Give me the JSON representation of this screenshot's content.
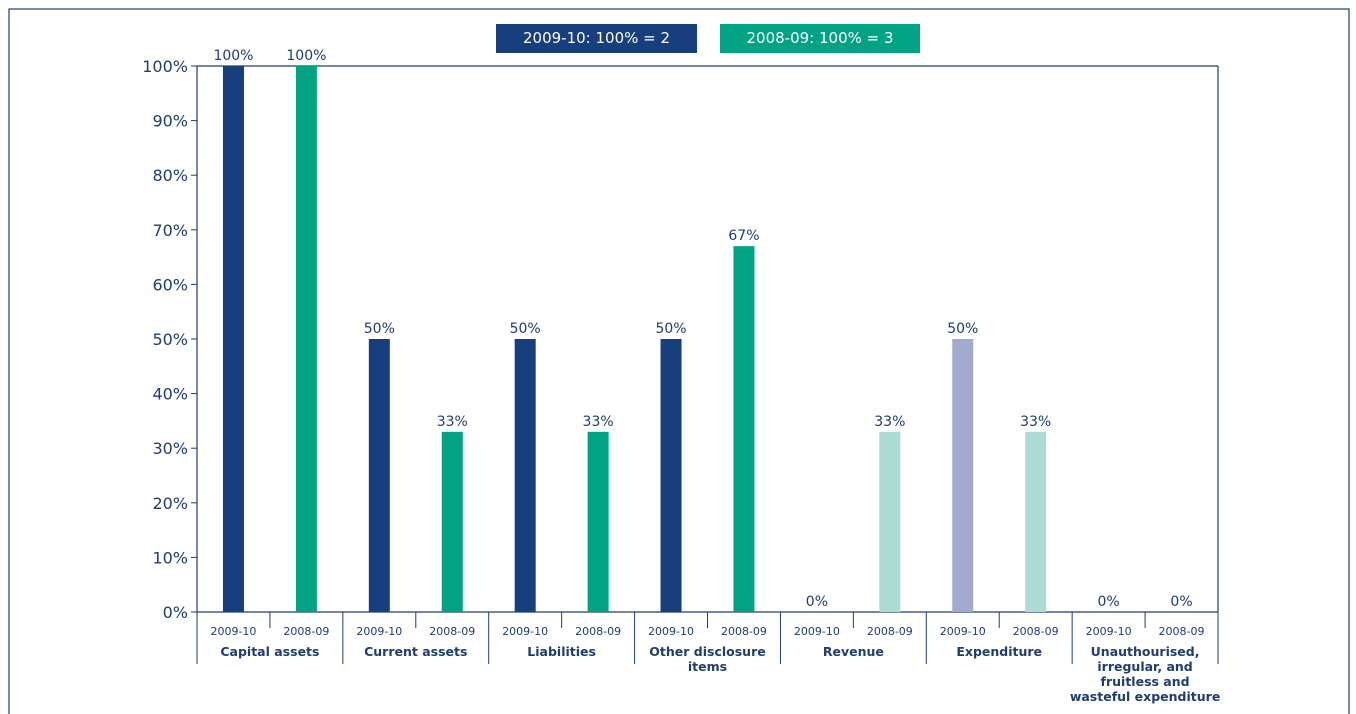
{
  "chart_data": {
    "type": "bar",
    "legend": [
      {
        "label": "2009-10: 100% = 2",
        "color": "#173f7d"
      },
      {
        "label": "2008-09: 100% = 3",
        "color": "#02a284"
      }
    ],
    "y_ticks": [
      "0%",
      "10%",
      "20%",
      "30%",
      "40%",
      "50%",
      "60%",
      "70%",
      "80%",
      "90%",
      "100%"
    ],
    "ylim": [
      0,
      100
    ],
    "groups": [
      {
        "label": "Capital assets",
        "bars": [
          {
            "period": "2009-10",
            "value": 100,
            "label": "100%",
            "color": "#173f7d"
          },
          {
            "period": "2008-09",
            "value": 100,
            "label": "100%",
            "color": "#02a284"
          }
        ]
      },
      {
        "label": "Current assets",
        "bars": [
          {
            "period": "2009-10",
            "value": 50,
            "label": "50%",
            "color": "#173f7d"
          },
          {
            "period": "2008-09",
            "value": 33,
            "label": "33%",
            "color": "#02a284"
          }
        ]
      },
      {
        "label": "Liabilities",
        "bars": [
          {
            "period": "2009-10",
            "value": 50,
            "label": "50%",
            "color": "#173f7d"
          },
          {
            "period": "2008-09",
            "value": 33,
            "label": "33%",
            "color": "#02a284"
          }
        ]
      },
      {
        "label": "Other disclosure items",
        "bars": [
          {
            "period": "2009-10",
            "value": 50,
            "label": "50%",
            "color": "#173f7d"
          },
          {
            "period": "2008-09",
            "value": 67,
            "label": "67%",
            "color": "#02a284"
          }
        ]
      },
      {
        "label": "Revenue",
        "bars": [
          {
            "period": "2009-10",
            "value": 0,
            "label": "0%",
            "color": "#173f7d"
          },
          {
            "period": "2008-09",
            "value": 33,
            "label": "33%",
            "color": "#acdcd2"
          }
        ]
      },
      {
        "label": "Expenditure",
        "bars": [
          {
            "period": "2009-10",
            "value": 50,
            "label": "50%",
            "color": "#a2abcd"
          },
          {
            "period": "2008-09",
            "value": 33,
            "label": "33%",
            "color": "#acdcd2"
          }
        ]
      },
      {
        "label": "Unauthourised, irregular, and fruitless and wasteful expenditure",
        "bars": [
          {
            "period": "2009-10",
            "value": 0,
            "label": "0%",
            "color": "#173f7d"
          },
          {
            "period": "2008-09",
            "value": 0,
            "label": "0%",
            "color": "#02a284"
          }
        ]
      }
    ]
  }
}
